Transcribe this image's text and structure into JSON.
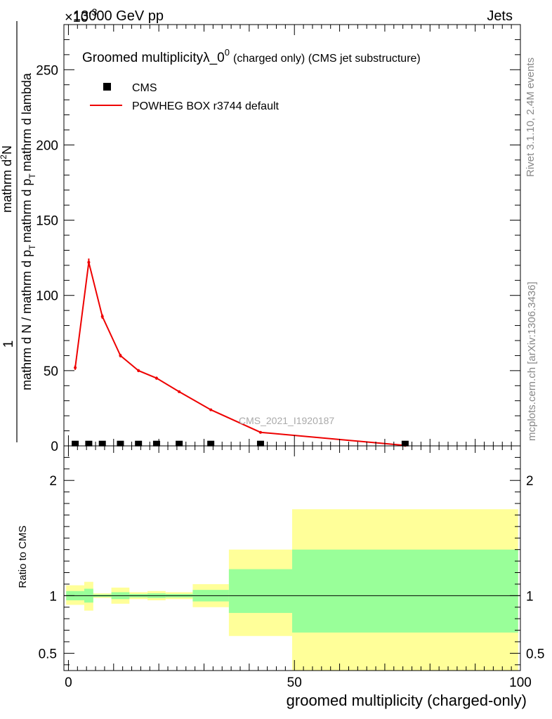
{
  "header": {
    "energy_label": "13000 GeV pp",
    "category_label": "Jets",
    "exponent_label": "×10",
    "exponent_power": "-3"
  },
  "side_texts": {
    "rivet_info": "Rivet 3.1.10,  2.4M events",
    "mcplots_info": "mcplots.cern.ch [arXiv:1306.3436]"
  },
  "chart_data": [
    {
      "type": "line",
      "title_main": "Groomed multiplicity",
      "title_lambda": "λ_0",
      "title_sup": "0",
      "title_suffix": "(charged only) (CMS jet substructure)",
      "watermark": "CMS_2021_I1920187",
      "ylabel_numerator": "1",
      "ylabel_denominator": "mathrm d N / mathrm d p_T mathrm d p_T mathrm d lambda",
      "ylabel_numerator_2": "mathrm d²N",
      "ylabel_top_line": "mathrm d p_T mathrm d lambda",
      "ylabel_parts": {
        "a": "mathrm d N / mathrm d p",
        "a_sub": "T",
        "b": "mathrm d p",
        "b_sub": "T",
        "c": "mathrm d lambda",
        "num": "mathrm d",
        "num_sup": "2",
        "num_end": "N"
      },
      "xlim": [
        -1,
        100
      ],
      "ylim": [
        0,
        280
      ],
      "yticks": [
        0,
        50,
        100,
        150,
        200,
        250
      ],
      "legend": [
        {
          "name": "CMS",
          "marker": "square",
          "color": "#000000"
        },
        {
          "name": "POWHEG BOX r3744 default",
          "marker": "line",
          "color": "#ee0000"
        }
      ],
      "series": [
        {
          "name": "CMS",
          "x": [
            1.5,
            4.5,
            7.5,
            11.5,
            15.5,
            19.5,
            24.5,
            31.5,
            42.5,
            74.5
          ],
          "values": [
            0.6,
            0.6,
            0.6,
            0.6,
            0.6,
            0.6,
            0.6,
            0.6,
            0.6,
            0.6
          ]
        },
        {
          "name": "POWHEG BOX r3744 default",
          "x": [
            1.5,
            4.5,
            7.5,
            11.5,
            15.5,
            19.5,
            24.5,
            31.5,
            42.5,
            74.5
          ],
          "values": [
            52,
            122,
            86,
            60,
            50,
            45,
            36,
            24,
            9,
            0.3
          ],
          "errors": [
            1.5,
            2.5,
            1.5,
            1.2,
            1.0,
            1.0,
            0.8,
            0.6,
            0.4,
            0.1
          ]
        }
      ]
    },
    {
      "type": "area",
      "ylabel": "Ratio to CMS",
      "xlabel": "groomed multiplicity (charged-only)",
      "xlim": [
        -1,
        100
      ],
      "ylim": [
        0.35,
        2.3
      ],
      "yticks": [
        0.5,
        1,
        2
      ],
      "ytick_labels": [
        "0.5",
        "1",
        "2"
      ],
      "xticks": [
        0,
        50,
        100
      ],
      "xtick_labels": [
        "0",
        "50",
        "100"
      ],
      "bands": [
        {
          "x0": -0.5,
          "x1": 3.5,
          "yellow": [
            0.92,
            1.09
          ],
          "green": [
            0.96,
            1.04
          ]
        },
        {
          "x0": 3.5,
          "x1": 5.5,
          "yellow": [
            0.87,
            1.12
          ],
          "green": [
            0.94,
            1.06
          ]
        },
        {
          "x0": 5.5,
          "x1": 9.5,
          "yellow": [
            0.98,
            1.02
          ],
          "green": [
            0.99,
            1.01
          ]
        },
        {
          "x0": 9.5,
          "x1": 13.5,
          "yellow": [
            0.93,
            1.07
          ],
          "green": [
            0.97,
            1.03
          ]
        },
        {
          "x0": 13.5,
          "x1": 17.5,
          "yellow": [
            0.97,
            1.03
          ],
          "green": [
            0.985,
            1.015
          ]
        },
        {
          "x0": 17.5,
          "x1": 21.5,
          "yellow": [
            0.96,
            1.04
          ],
          "green": [
            0.98,
            1.02
          ]
        },
        {
          "x0": 21.5,
          "x1": 27.5,
          "yellow": [
            0.97,
            1.03
          ],
          "green": [
            0.985,
            1.015
          ]
        },
        {
          "x0": 27.5,
          "x1": 35.5,
          "yellow": [
            0.9,
            1.1
          ],
          "green": [
            0.95,
            1.05
          ]
        },
        {
          "x0": 35.5,
          "x1": 49.5,
          "yellow": [
            0.65,
            1.4
          ],
          "green": [
            0.85,
            1.23
          ]
        },
        {
          "x0": 49.5,
          "x1": 99.5,
          "yellow": [
            0.35,
            1.75
          ],
          "green": [
            0.68,
            1.4
          ]
        }
      ],
      "colors": {
        "yellow": "#ffff99",
        "green": "#99ff99",
        "ref_line": "#000000"
      }
    }
  ]
}
